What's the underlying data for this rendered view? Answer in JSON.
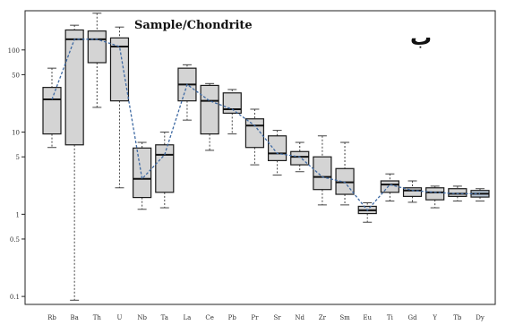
{
  "chart_data": {
    "type": "box",
    "title": "Sample/Chondrite",
    "corner_label": "ب",
    "y_scale": "log10",
    "y_ticks": [
      "100",
      "50",
      "10",
      "5",
      "1",
      "0.5",
      "0.1"
    ],
    "y_tick_values": [
      100,
      50,
      10,
      5,
      1,
      0.5,
      0.1
    ],
    "categories": [
      "Rb",
      "Ba",
      "Th",
      "U",
      "Nb",
      "Ta",
      "La",
      "Ce",
      "Pb",
      "Pr",
      "Sr",
      "Nd",
      "Zr",
      "Sm",
      "Eu",
      "Ti",
      "Gd",
      "Y",
      "Tb",
      "Dy"
    ],
    "x_tick_labels": [
      "Rb",
      "Ba",
      "Th",
      "U",
      "Nb",
      "Ta",
      "La",
      "Ce",
      "Pb",
      "Pr",
      "Sr",
      "Nd",
      "Zr",
      "Sm",
      "Eu",
      "Ti",
      "Gd",
      "Y",
      "Tb",
      "Dy"
    ],
    "series": [
      {
        "boxes": [
          {
            "min": 6.5,
            "q1": 9.5,
            "median": 25,
            "q3": 35,
            "max": 60,
            "fill": "#d4d4d4"
          },
          {
            "min": 0.09,
            "q1": 7,
            "median": 135,
            "q3": 175,
            "max": 200,
            "fill": "#d4d4d4"
          },
          {
            "min": 20,
            "q1": 70,
            "median": 135,
            "q3": 170,
            "max": 280,
            "fill": "#d4d4d4"
          },
          {
            "min": 2.1,
            "q1": 24,
            "median": 110,
            "q3": 140,
            "max": 190,
            "fill": "#d4d4d4"
          },
          {
            "min": 1.15,
            "q1": 1.6,
            "median": 2.7,
            "q3": 6.4,
            "max": 7.5,
            "fill": "#d4d4d4"
          },
          {
            "min": 1.2,
            "q1": 1.85,
            "median": 5.3,
            "q3": 7.0,
            "max": 10,
            "fill": "#d4d4d4"
          },
          {
            "min": 14,
            "q1": 24,
            "median": 38,
            "q3": 60,
            "max": 66,
            "fill": "#d4d4d4"
          },
          {
            "min": 6.0,
            "q1": 9.5,
            "median": 24,
            "q3": 37,
            "max": 39,
            "fill": "#d4d4d4"
          },
          {
            "min": 9.5,
            "q1": 17,
            "median": 19,
            "q3": 30,
            "max": 33,
            "fill": "#d4d4d4"
          },
          {
            "min": 4.0,
            "q1": 6.5,
            "median": 12,
            "q3": 14.5,
            "max": 19,
            "fill": "#d4d4d4"
          },
          {
            "min": 3.0,
            "q1": 4.5,
            "median": 5.5,
            "q3": 9.0,
            "max": 10.5,
            "fill": "#d4d4d4"
          },
          {
            "min": 3.3,
            "q1": 4.0,
            "median": 5.0,
            "q3": 5.8,
            "max": 7.5,
            "fill": "#d4d4d4"
          },
          {
            "min": 1.3,
            "q1": 2.0,
            "median": 2.85,
            "q3": 5.0,
            "max": 9.0,
            "fill": "#d4d4d4"
          },
          {
            "min": 1.3,
            "q1": 1.75,
            "median": 2.45,
            "q3": 3.6,
            "max": 7.5,
            "fill": "#d4d4d4"
          },
          {
            "min": 0.8,
            "q1": 1.02,
            "median": 1.12,
            "q3": 1.25,
            "max": 1.38,
            "fill": "#d4d4d4"
          },
          {
            "min": 1.45,
            "q1": 1.85,
            "median": 2.3,
            "q3": 2.55,
            "max": 3.1,
            "fill": "#d4d4d4"
          },
          {
            "min": 1.4,
            "q1": 1.65,
            "median": 1.95,
            "q3": 2.1,
            "max": 2.55,
            "fill": "#d4d4d4"
          },
          {
            "min": 1.2,
            "q1": 1.5,
            "median": 1.85,
            "q3": 2.1,
            "max": 2.2,
            "fill": "#d4d4d4"
          },
          {
            "min": 1.45,
            "q1": 1.65,
            "median": 1.78,
            "q3": 2.05,
            "max": 2.2,
            "fill": "#d4d4d4"
          },
          {
            "min": 1.45,
            "q1": 1.62,
            "median": 1.78,
            "q3": 1.95,
            "max": 2.05,
            "fill": "#b9c7d6"
          }
        ]
      }
    ],
    "median_line": {
      "style": "dashed",
      "color": "#3f6aa3"
    },
    "grid": false,
    "legend": "none",
    "colors": {
      "axis": "#222222",
      "box_border": "#1a1a1a",
      "whisker": "#444444",
      "median": "#111111"
    }
  }
}
